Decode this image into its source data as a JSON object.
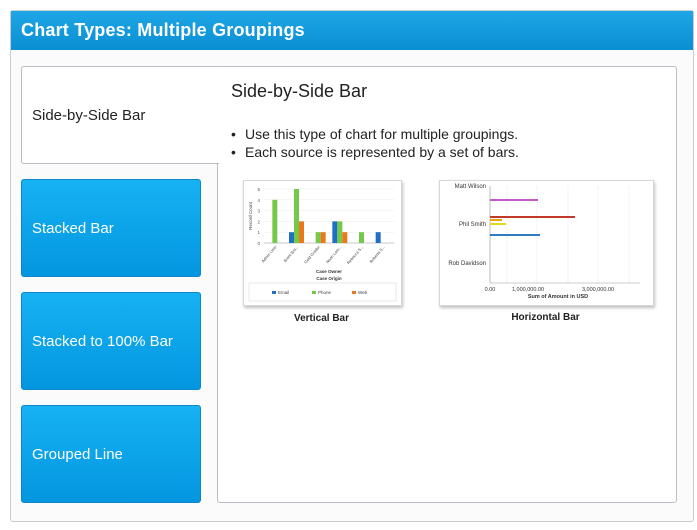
{
  "header": {
    "title": "Chart Types: Multiple Groupings"
  },
  "tabs": [
    {
      "label": "Side-by-Side Bar",
      "active": true
    },
    {
      "label": "Stacked Bar",
      "active": false
    },
    {
      "label": "Stacked to 100% Bar",
      "active": false
    },
    {
      "label": "Grouped Line",
      "active": false
    }
  ],
  "content": {
    "title": "Side-by-Side Bar",
    "bullets": [
      "Use this type of chart for multiple groupings.",
      "Each source is represented by a set of bars."
    ]
  },
  "images": {
    "vertical": {
      "caption": "Vertical Bar",
      "ylabel": "Record Count",
      "yticks": [
        "0",
        "1",
        "2",
        "3",
        "4",
        "5"
      ],
      "categories": [
        "Admin User",
        "Brent Bra...",
        "Gold Gradur",
        "Noah Lam...",
        "Rebecca S...",
        "Roberta S..."
      ],
      "xlabel": "Case Owner",
      "legend_title": "Case Origin",
      "legend": [
        {
          "name": "Email",
          "color": "#1f6fc5"
        },
        {
          "name": "Phone",
          "color": "#75c94a"
        },
        {
          "name": "Web",
          "color": "#e8791c"
        }
      ],
      "series": [
        {
          "name": "Email",
          "values": [
            0,
            1,
            0,
            2,
            0,
            1
          ]
        },
        {
          "name": "Phone",
          "values": [
            4,
            5,
            1,
            2,
            1,
            0
          ]
        },
        {
          "name": "Web",
          "values": [
            0,
            2,
            1,
            1,
            0,
            0
          ]
        }
      ]
    },
    "horizontal": {
      "caption": "Horizontal Bar",
      "categories": [
        "Matt Wilson",
        "Phil Smith",
        "Rob Davidson"
      ],
      "xticks": [
        "0.00",
        "1,000,000.00",
        "3,000,000.00"
      ],
      "xlabel": "Sum of Amount in USD",
      "colors": [
        "#c45ac8",
        "#c0392b",
        "#f0a202",
        "#e3d81b",
        "#2e7dc4"
      ]
    }
  }
}
